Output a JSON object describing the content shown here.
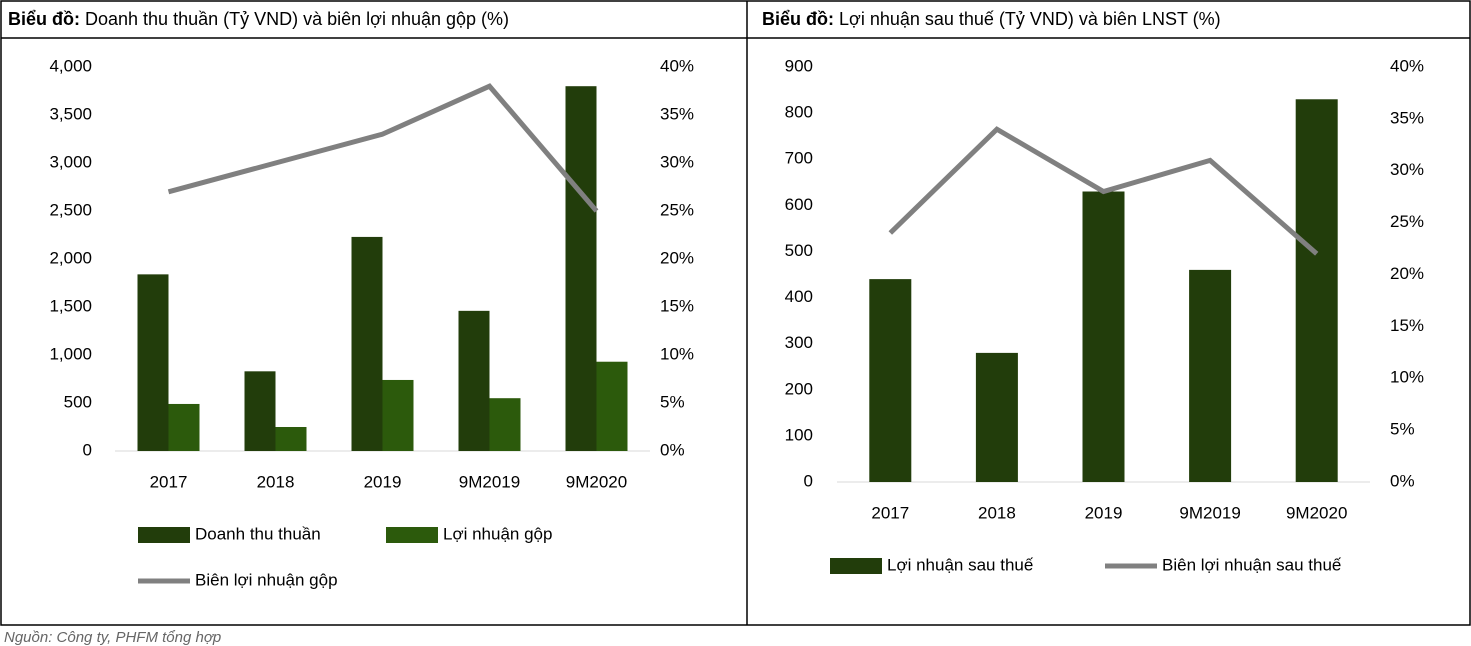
{
  "chart_data": [
    {
      "type": "bar",
      "title_prefix": "Biểu đồ:",
      "title": "Doanh thu thuần (Tỷ VND) và biên lợi nhuận gộp (%)",
      "categories": [
        "2017",
        "2018",
        "2019",
        "9M2019",
        "9M2020"
      ],
      "series": [
        {
          "name": "Doanh thu thuần",
          "color": "#223d0b",
          "values": [
            1840,
            830,
            2230,
            1460,
            3800
          ]
        },
        {
          "name": "Lợi nhuận gộp",
          "color": "#2c5a0c",
          "values": [
            490,
            250,
            740,
            550,
            930
          ]
        },
        {
          "name": "Biên lợi nhuận gộp",
          "color": "#808080",
          "type": "line",
          "axis": "y2",
          "values": [
            27,
            30,
            33,
            38,
            25
          ]
        }
      ],
      "ylim": [
        0,
        4000
      ],
      "yticks": [
        0,
        500,
        {
          "value": 1000,
          "label": "1,000"
        },
        {
          "value": 1500,
          "label": "1,500"
        },
        {
          "value": 2000,
          "label": "2,000"
        },
        {
          "value": 2500,
          "label": "2,500"
        },
        {
          "value": 3000,
          "label": "3,000"
        },
        {
          "value": 3500,
          "label": "3,500"
        },
        {
          "value": 4000,
          "label": "4,000"
        }
      ],
      "y2lim": [
        0,
        40
      ],
      "y2ticks": [
        {
          "value": 0,
          "label": "0%"
        },
        {
          "value": 5,
          "label": "5%"
        },
        {
          "value": 10,
          "label": "10%"
        },
        {
          "value": 15,
          "label": "15%"
        },
        {
          "value": 20,
          "label": "20%"
        },
        {
          "value": 25,
          "label": "25%"
        },
        {
          "value": 30,
          "label": "30%"
        },
        {
          "value": 35,
          "label": "35%"
        },
        {
          "value": 40,
          "label": "40%"
        }
      ],
      "grid": false,
      "legend": "bottom"
    },
    {
      "type": "bar",
      "title_prefix": "Biểu đồ:",
      "title": "Lợi nhuận sau thuế (Tỷ VND) và biên LNST (%)",
      "categories": [
        "2017",
        "2018",
        "2019",
        "9M2019",
        "9M2020"
      ],
      "series": [
        {
          "name": "Lợi nhuận sau thuế",
          "color": "#223d0b",
          "values": [
            440,
            280,
            630,
            460,
            830
          ]
        },
        {
          "name": "Biên lợi nhuận sau thuế",
          "color": "#808080",
          "type": "line",
          "axis": "y2",
          "values": [
            24,
            34,
            28,
            31,
            22
          ]
        }
      ],
      "ylim": [
        0,
        900
      ],
      "yticks": [
        0,
        100,
        200,
        300,
        400,
        500,
        600,
        700,
        800,
        900
      ],
      "y2lim": [
        0,
        40
      ],
      "y2ticks": [
        {
          "value": 0,
          "label": "0%"
        },
        {
          "value": 5,
          "label": "5%"
        },
        {
          "value": 10,
          "label": "10%"
        },
        {
          "value": 15,
          "label": "15%"
        },
        {
          "value": 20,
          "label": "20%"
        },
        {
          "value": 25,
          "label": "25%"
        },
        {
          "value": 30,
          "label": "30%"
        },
        {
          "value": 35,
          "label": "35%"
        },
        {
          "value": 40,
          "label": "40%"
        }
      ],
      "grid": false,
      "legend": "bottom"
    }
  ],
  "source": "Nguồn: Công ty, PHFM tổng hợp"
}
